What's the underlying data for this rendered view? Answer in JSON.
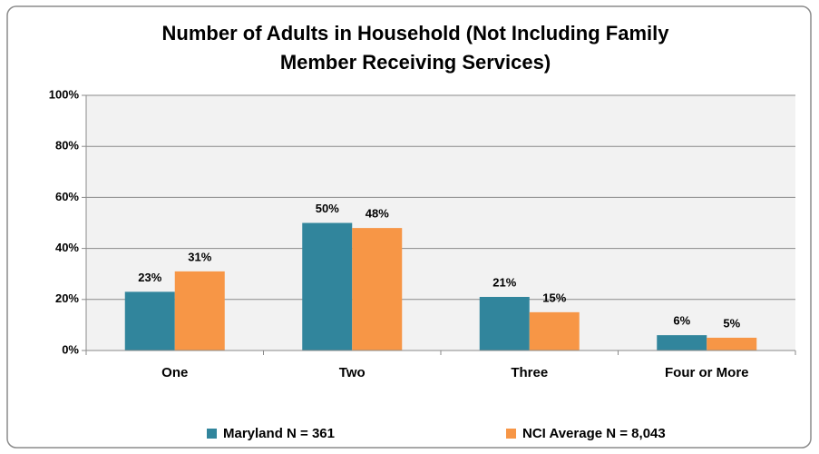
{
  "chart_data": {
    "type": "bar",
    "title": [
      "Number of Adults in Household (Not Including Family",
      "Member Receiving Services)"
    ],
    "categories": [
      "One",
      "Two",
      "Three",
      "Four or More"
    ],
    "series": [
      {
        "name": "Maryland N = 361",
        "color": "#31859c",
        "values": [
          23,
          50,
          21,
          6
        ],
        "value_labels": [
          "23%",
          "50%",
          "21%",
          "6%"
        ]
      },
      {
        "name": "NCI Average N = 8,043",
        "color": "#f79646",
        "values": [
          31,
          48,
          15,
          5
        ],
        "value_labels": [
          "31%",
          "48%",
          "15%",
          "5%"
        ]
      }
    ],
    "ylim": [
      0,
      100
    ],
    "yticks": [
      {
        "value": 0,
        "label": "0%"
      },
      {
        "value": 20,
        "label": "20%"
      },
      {
        "value": 40,
        "label": "40%"
      },
      {
        "value": 60,
        "label": "60%"
      },
      {
        "value": 80,
        "label": "80%"
      },
      {
        "value": 100,
        "label": "100%"
      }
    ],
    "grid": true,
    "legend": "bottom"
  }
}
